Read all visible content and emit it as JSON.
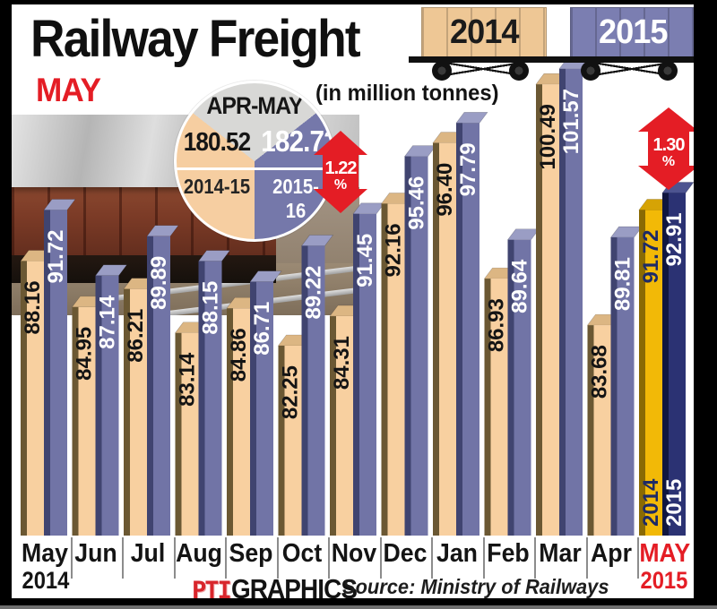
{
  "title": "Railway Freight",
  "subtitle_month": "MAY",
  "units_label": "(in million tonnes)",
  "legend": {
    "year_2014": "2014",
    "year_2015": "2015"
  },
  "summary_pie": {
    "heading": "APR-MAY",
    "left_value": "180.52",
    "left_period": "2014-15",
    "right_value": "182.72",
    "right_period": "2015-16"
  },
  "apr_may_growth": {
    "value": "1.22",
    "pct_sign": "%"
  },
  "may_growth": {
    "value": "1.30",
    "pct_sign": "%"
  },
  "axis": {
    "first_month_year": "2014",
    "last_month_year": "2015",
    "highlight_bar_years": [
      "2014",
      "2015"
    ]
  },
  "footer": {
    "logo": "PTI",
    "brand": "GRAPHICS",
    "source": "Source: Ministry of Railways"
  },
  "colors": {
    "accent_red": "#e41d25",
    "bar_2014_beige": "#f8d0a0",
    "bar_2015_purple": "#7174a6",
    "highlight_2014_gold": "#f2b907",
    "highlight_2015_navy": "#2b3273",
    "pie_gray": "#d8d8d6",
    "pie_beige": "#f6cea1",
    "pie_purple": "#7578aa"
  },
  "chart_data": {
    "type": "bar",
    "title": "Railway Freight (in million tonnes)",
    "categories": [
      "May",
      "Jun",
      "Jul",
      "Aug",
      "Sep",
      "Oct",
      "Nov",
      "Dec",
      "Jan",
      "Feb",
      "Mar",
      "Apr",
      "MAY"
    ],
    "series": [
      {
        "name": "2014",
        "values": [
          88.16,
          84.95,
          86.21,
          83.14,
          84.86,
          82.25,
          84.31,
          92.16,
          96.4,
          86.93,
          100.49,
          83.68,
          91.72
        ]
      },
      {
        "name": "2015",
        "values": [
          91.72,
          87.14,
          89.89,
          88.15,
          86.71,
          89.22,
          91.45,
          95.46,
          97.79,
          89.64,
          101.57,
          89.81,
          92.91
        ]
      }
    ],
    "highlight_last_pair": true,
    "summary": {
      "apr_may_2014_15": 180.52,
      "apr_may_2015_16": 182.72,
      "apr_may_growth_pct": 1.22,
      "may_growth_pct": 1.3
    },
    "ylabel": "million tonnes",
    "legend_position": "top-right",
    "grid": false
  }
}
